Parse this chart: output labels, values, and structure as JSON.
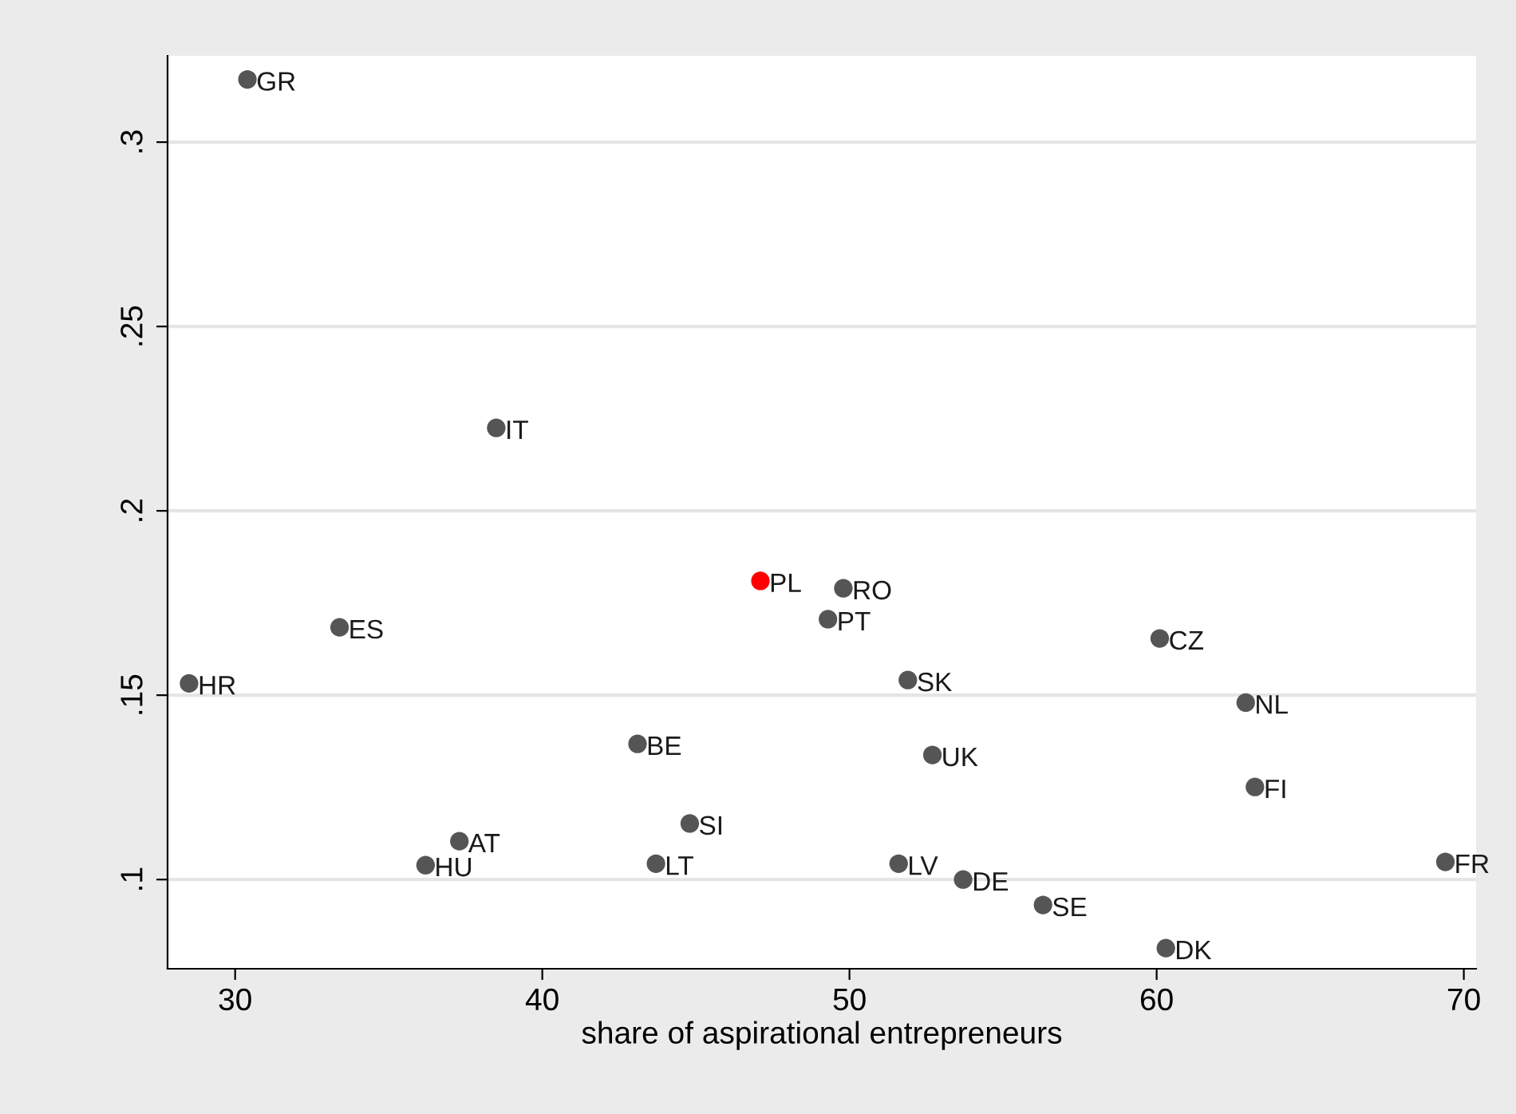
{
  "chart_data": {
    "type": "scatter",
    "xlabel": "share of aspirational entrepreneurs",
    "x": [
      30.4,
      38.5,
      47.1,
      49.8,
      49.3,
      33.4,
      60.1,
      28.5,
      51.9,
      62.9,
      43.1,
      52.7,
      63.2,
      44.8,
      37.3,
      36.2,
      43.7,
      51.6,
      53.7,
      56.3,
      60.3,
      69.4
    ],
    "values": [
      0.317,
      0.2225,
      0.181,
      0.179,
      0.1706,
      0.1684,
      0.1654,
      0.1532,
      0.1541,
      0.148,
      0.1368,
      0.1338,
      0.1251,
      0.1152,
      0.1104,
      0.1039,
      0.1043,
      0.1043,
      0.1,
      0.0931,
      0.0814,
      0.1048
    ],
    "colors": [
      "#555555",
      "#555555",
      "#ff0000",
      "#555555",
      "#555555",
      "#555555",
      "#555555",
      "#555555",
      "#555555",
      "#555555",
      "#555555",
      "#555555",
      "#555555",
      "#555555",
      "#555555",
      "#555555",
      "#555555",
      "#555555",
      "#555555",
      "#555555",
      "#555555",
      "#555555"
    ],
    "annotations": [
      {
        "text": "GR",
        "x": 30.4,
        "y": 0.317
      },
      {
        "text": "IT",
        "x": 38.5,
        "y": 0.2225
      },
      {
        "text": "PL",
        "x": 47.1,
        "y": 0.181
      },
      {
        "text": "RO",
        "x": 49.8,
        "y": 0.179
      },
      {
        "text": "PT",
        "x": 49.3,
        "y": 0.1706
      },
      {
        "text": "ES",
        "x": 33.4,
        "y": 0.1684
      },
      {
        "text": "CZ",
        "x": 60.1,
        "y": 0.1654
      },
      {
        "text": "HR",
        "x": 28.5,
        "y": 0.1532
      },
      {
        "text": "SK",
        "x": 51.9,
        "y": 0.1541
      },
      {
        "text": "NL",
        "x": 62.9,
        "y": 0.148
      },
      {
        "text": "BE",
        "x": 43.1,
        "y": 0.1368
      },
      {
        "text": "UK",
        "x": 52.7,
        "y": 0.1338
      },
      {
        "text": "FI",
        "x": 63.2,
        "y": 0.1251
      },
      {
        "text": "SI",
        "x": 44.8,
        "y": 0.1152
      },
      {
        "text": "AT",
        "x": 37.3,
        "y": 0.1104
      },
      {
        "text": "HU",
        "x": 36.2,
        "y": 0.1039
      },
      {
        "text": "LT",
        "x": 43.7,
        "y": 0.1043
      },
      {
        "text": "LV",
        "x": 51.6,
        "y": 0.1043
      },
      {
        "text": "DE",
        "x": 53.7,
        "y": 0.1
      },
      {
        "text": "SE",
        "x": 56.3,
        "y": 0.0931
      },
      {
        "text": "DK",
        "x": 60.3,
        "y": 0.0814
      },
      {
        "text": "FR",
        "x": 69.4,
        "y": 0.1048
      }
    ],
    "xlim": [
      27.8,
      70.4
    ],
    "ylim": [
      0.0758,
      0.3234
    ],
    "xticks": [
      30,
      40,
      50,
      60,
      70
    ],
    "yticks": [
      {
        "value": 0.1,
        "label": ".1"
      },
      {
        "value": 0.15,
        "label": ".15"
      },
      {
        "value": 0.2,
        "label": ".2"
      },
      {
        "value": 0.25,
        "label": ".25"
      },
      {
        "value": 0.3,
        "label": ".3"
      }
    ],
    "grid": "y",
    "marker": "circle"
  }
}
